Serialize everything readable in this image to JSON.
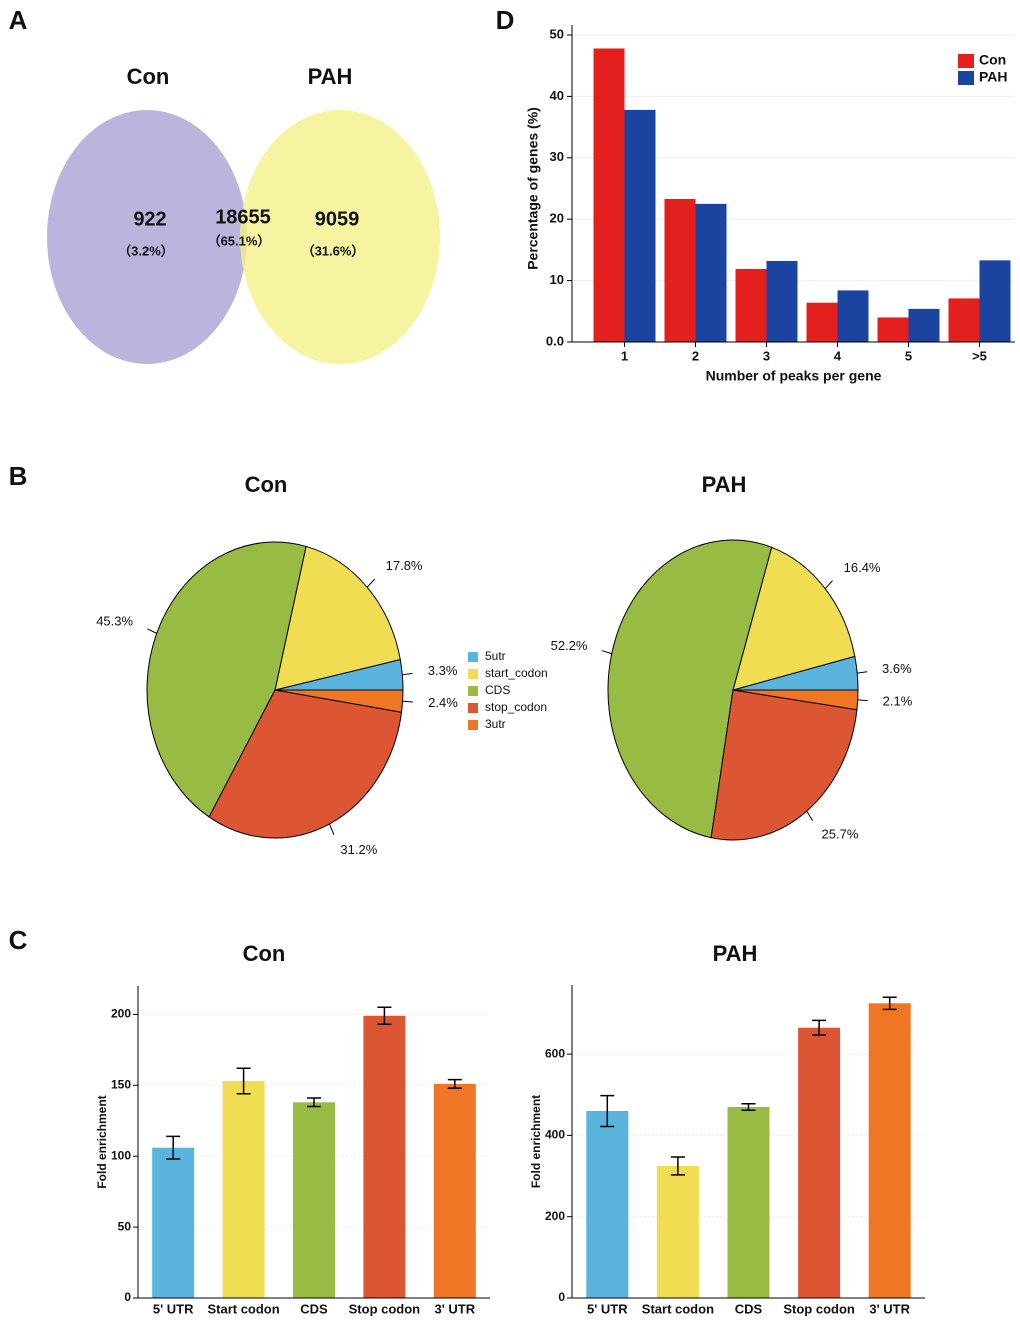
{
  "chart_data": [
    {
      "type": "venn",
      "panel": "A",
      "sets": [
        "Con",
        "PAH"
      ],
      "colors": [
        "#a9a3d4",
        "#f4f08a"
      ],
      "values": [
        922,
        18655,
        9059
      ],
      "percentages": [
        3.2,
        65.1,
        31.6
      ],
      "percentage_labels": [
        "（3.2%）",
        "（65.1%）",
        "（31.6%）"
      ]
    },
    {
      "type": "bar",
      "panel": "D",
      "xlabel": "Number of peaks per gene",
      "ylabel": "Percentage of genes (%)",
      "categories": [
        "1",
        "2",
        "3",
        "4",
        "5",
        ">5"
      ],
      "series": [
        {
          "name": "Con",
          "color": "#e4201f",
          "values": [
            47.8,
            23.3,
            11.9,
            6.4,
            4.0,
            7.1
          ]
        },
        {
          "name": "PAH",
          "color": "#1a44a0",
          "values": [
            37.8,
            22.5,
            13.2,
            8.4,
            5.4,
            13.3
          ]
        }
      ],
      "ylim": [
        0,
        50
      ],
      "yticks": [
        {
          "value": 0,
          "label": "0.0"
        },
        10,
        20,
        30,
        40,
        50
      ],
      "legend": "upper right"
    },
    {
      "type": "pie",
      "panel": "B",
      "title": "Con",
      "categories": [
        "5utr",
        "start_codon",
        "CDS",
        "stop_codon",
        "3utr"
      ],
      "colors": [
        "#5ab4de",
        "#f0dd52",
        "#98bb44",
        "#dc5634",
        "#ee7624"
      ],
      "values": [
        3.3,
        17.8,
        45.3,
        31.2,
        2.4
      ],
      "value_labels": [
        "3.3%",
        "17.8%",
        "45.3%",
        "31.2%",
        "2.4%"
      ],
      "legend": "right"
    },
    {
      "type": "pie",
      "title": "PAH",
      "categories": [
        "5utr",
        "start_codon",
        "CDS",
        "stop_codon",
        "3utr"
      ],
      "colors": [
        "#5ab4de",
        "#f0dd52",
        "#98bb44",
        "#dc5634",
        "#ee7624"
      ],
      "values": [
        3.6,
        16.4,
        52.2,
        25.7,
        2.1
      ],
      "value_labels": [
        "3.6%",
        "16.4%",
        "52.2%",
        "25.7%",
        "2.1%"
      ]
    },
    {
      "type": "errorbar",
      "panel": "C",
      "title": "Con",
      "ylabel": "Fold enrichment",
      "categories": [
        "5' UTR",
        "Start codon",
        "CDS",
        "Stop codon",
        "3' UTR"
      ],
      "colors": [
        "#5ab4de",
        "#f0dd52",
        "#98bb44",
        "#dc5634",
        "#ee7624"
      ],
      "values": [
        106,
        153,
        138,
        199,
        151
      ],
      "errors": [
        8,
        9,
        3,
        6,
        3
      ],
      "ylim": [
        0,
        220
      ],
      "yticks": [
        0,
        50,
        100,
        150,
        200
      ]
    },
    {
      "type": "errorbar",
      "title": "PAH",
      "ylabel": "Fold enrichment",
      "categories": [
        "5' UTR",
        "Start codon",
        "CDS",
        "Stop codon",
        "3' UTR"
      ],
      "colors": [
        "#5ab4de",
        "#f0dd52",
        "#98bb44",
        "#dc5634",
        "#ee7624"
      ],
      "values": [
        460,
        325,
        470,
        665,
        725
      ],
      "errors": [
        38,
        22,
        8,
        18,
        15
      ],
      "ylim": [
        0,
        770
      ],
      "yticks": [
        0,
        200,
        400,
        600
      ]
    }
  ]
}
